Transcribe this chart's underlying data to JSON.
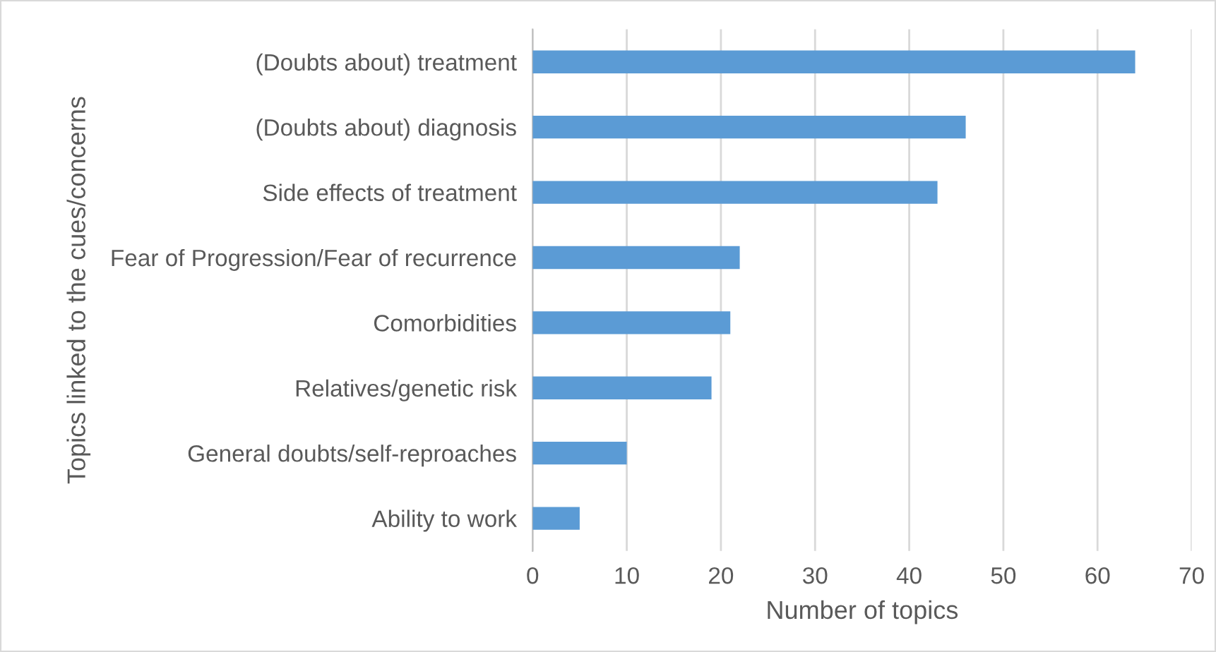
{
  "chart_data": {
    "type": "bar",
    "orientation": "horizontal",
    "xlabel": "Number of topics",
    "ylabel": "Topics linked to the cues/concerns",
    "categories": [
      "(Doubts about) treatment",
      "(Doubts about) diagnosis",
      "Side effects of treatment",
      "Fear of Progression/Fear of recurrence",
      "Comorbidities",
      "Relatives/genetic risk",
      "General doubts/self-reproaches",
      "Ability to work"
    ],
    "values": [
      64,
      46,
      43,
      22,
      21,
      19,
      10,
      5
    ],
    "color": "#5b9bd5",
    "xlim": [
      0,
      70
    ],
    "xticks": [
      0,
      10,
      20,
      30,
      40,
      50,
      60,
      70
    ],
    "grid": "x"
  }
}
